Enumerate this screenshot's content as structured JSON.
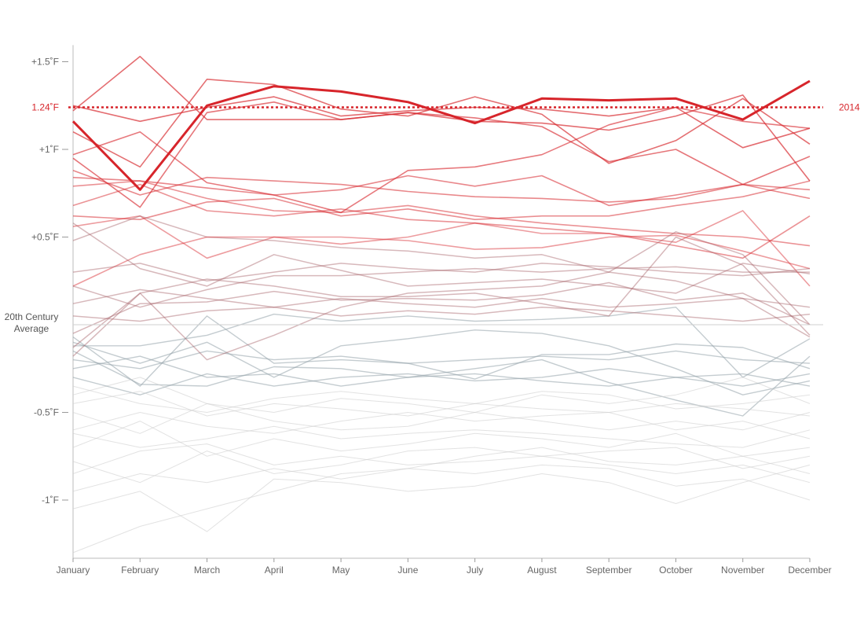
{
  "chart_data": {
    "type": "line",
    "categories": [
      "January",
      "February",
      "March",
      "April",
      "May",
      "June",
      "July",
      "August",
      "September",
      "October",
      "November",
      "December"
    ],
    "ylim": [
      -1.3,
      1.55
    ],
    "y_ticks": [
      {
        "value": 1.5,
        "label": "+1.5˚F"
      },
      {
        "value": 1.0,
        "label": "+1˚F"
      },
      {
        "value": 0.5,
        "label": "+0.5˚F"
      },
      {
        "value": -0.5,
        "label": "-0.5˚F"
      },
      {
        "value": -1.0,
        "label": "-1˚F"
      }
    ],
    "baseline": {
      "value": 0,
      "label_lines": [
        "20th Century",
        "Average"
      ]
    },
    "highlight": {
      "name": "2014",
      "reference_value": 1.24,
      "reference_label": "1.24˚F",
      "color": "#d7252b",
      "values": [
        1.16,
        0.77,
        1.25,
        1.36,
        1.33,
        1.27,
        1.15,
        1.29,
        1.28,
        1.29,
        1.17,
        1.39
      ]
    },
    "colors": {
      "warm": "#d7252b",
      "cool": "#7f949c",
      "neutral": "#cfcfcf"
    },
    "series": [
      {
        "values": [
          1.22,
          1.53,
          1.17,
          1.17,
          1.17,
          1.21,
          1.16,
          1.15,
          1.11,
          1.19,
          1.31,
          0.82
        ]
      },
      {
        "values": [
          1.1,
          0.9,
          1.4,
          1.37,
          1.23,
          1.19,
          1.3,
          1.2,
          0.92,
          1.05,
          1.29,
          1.03
        ]
      },
      {
        "values": [
          1.25,
          1.16,
          1.24,
          1.3,
          1.19,
          1.22,
          1.24,
          1.23,
          1.19,
          1.24,
          1.01,
          1.12
        ]
      },
      {
        "values": [
          0.97,
          1.1,
          0.81,
          0.74,
          0.64,
          0.88,
          0.9,
          0.97,
          1.14,
          1.24,
          1.16,
          1.12
        ]
      },
      {
        "values": [
          0.95,
          0.67,
          1.21,
          1.27,
          1.17,
          1.21,
          1.18,
          1.13,
          0.93,
          1.0,
          0.8,
          0.96
        ]
      },
      {
        "values": [
          0.84,
          0.82,
          0.78,
          0.74,
          0.77,
          0.85,
          0.79,
          0.85,
          0.68,
          0.74,
          0.8,
          0.77
        ]
      },
      {
        "values": [
          0.88,
          0.74,
          0.84,
          0.82,
          0.8,
          0.76,
          0.73,
          0.72,
          0.7,
          0.72,
          0.8,
          0.72
        ]
      },
      {
        "values": [
          0.79,
          0.82,
          0.72,
          0.65,
          0.64,
          0.68,
          0.62,
          0.58,
          0.55,
          0.52,
          0.5,
          0.45
        ]
      },
      {
        "values": [
          0.62,
          0.6,
          0.7,
          0.72,
          0.62,
          0.66,
          0.6,
          0.62,
          0.62,
          0.68,
          0.73,
          0.82
        ]
      },
      {
        "values": [
          0.68,
          0.8,
          0.65,
          0.62,
          0.66,
          0.6,
          0.58,
          0.55,
          0.52,
          0.45,
          0.38,
          0.62
        ]
      },
      {
        "values": [
          0.56,
          0.62,
          0.38,
          0.5,
          0.5,
          0.48,
          0.43,
          0.44,
          0.5,
          0.51,
          0.42,
          0.32
        ]
      },
      {
        "values": [
          0.48,
          0.62,
          0.5,
          0.48,
          0.44,
          0.42,
          0.38,
          0.4,
          0.3,
          0.53,
          0.4,
          0.0
        ]
      },
      {
        "values": [
          0.22,
          0.4,
          0.5,
          0.5,
          0.46,
          0.5,
          0.58,
          0.52,
          0.52,
          0.47,
          0.65,
          0.22
        ]
      },
      {
        "values": [
          0.58,
          0.32,
          0.22,
          0.4,
          0.31,
          0.22,
          0.24,
          0.26,
          0.22,
          0.18,
          0.35,
          0.29
        ]
      },
      {
        "values": [
          0.22,
          0.1,
          0.2,
          0.28,
          0.28,
          0.3,
          0.32,
          0.3,
          0.32,
          0.33,
          0.3,
          0.3
        ]
      },
      {
        "values": [
          -0.13,
          0.18,
          0.26,
          0.22,
          0.16,
          0.16,
          0.18,
          0.12,
          0.05,
          0.5,
          0.34,
          -0.06
        ]
      },
      {
        "values": [
          -0.05,
          0.12,
          0.13,
          0.19,
          0.14,
          0.15,
          0.14,
          0.17,
          0.24,
          0.14,
          0.18,
          0.0
        ]
      },
      {
        "values": [
          -0.18,
          0.18,
          -0.2,
          -0.06,
          0.1,
          0.18,
          0.2,
          0.22,
          0.3,
          0.25,
          0.15,
          -0.07
        ]
      },
      {
        "values": [
          -0.12,
          -0.12,
          -0.06,
          0.06,
          0.02,
          0.05,
          0.02,
          0.03,
          0.05,
          0.1,
          -0.3,
          -0.08
        ]
      },
      {
        "values": [
          -0.07,
          -0.35,
          0.05,
          -0.22,
          -0.2,
          -0.22,
          -0.31,
          -0.17,
          -0.17,
          -0.11,
          -0.13,
          -0.25
        ]
      },
      {
        "values": [
          -0.15,
          -0.34,
          -0.35,
          -0.24,
          -0.25,
          -0.3,
          -0.25,
          -0.2,
          -0.33,
          -0.43,
          -0.52,
          -0.18
        ]
      },
      {
        "values": [
          -0.1,
          -0.22,
          -0.1,
          -0.3,
          -0.12,
          -0.08,
          -0.03,
          -0.05,
          -0.12,
          -0.25,
          -0.4,
          -0.32
        ]
      },
      {
        "values": [
          -0.4,
          -0.3,
          -0.45,
          -0.5,
          -0.42,
          -0.45,
          -0.5,
          -0.4,
          -0.45,
          -0.4,
          -0.3,
          -0.45
        ]
      },
      {
        "values": [
          -0.6,
          -0.5,
          -0.58,
          -0.62,
          -0.55,
          -0.5,
          -0.55,
          -0.52,
          -0.5,
          -0.6,
          -0.55,
          -0.65
        ]
      },
      {
        "values": [
          -0.7,
          -0.55,
          -0.75,
          -0.65,
          -0.72,
          -0.68,
          -0.62,
          -0.65,
          -0.7,
          -0.62,
          -0.75,
          -0.7
        ]
      },
      {
        "values": [
          -0.85,
          -0.72,
          -0.68,
          -0.8,
          -0.75,
          -0.8,
          -0.78,
          -0.75,
          -0.8,
          -0.85,
          -0.8,
          -0.9
        ]
      },
      {
        "values": [
          -0.95,
          -0.85,
          -0.9,
          -0.82,
          -0.88,
          -0.82,
          -0.85,
          -0.8,
          -0.82,
          -0.92,
          -0.88,
          -1.0
        ]
      },
      {
        "values": [
          -1.3,
          -1.15,
          -1.05,
          -0.95,
          -0.85,
          -0.82,
          -0.75,
          -0.7,
          -0.78,
          -0.8,
          -0.75,
          -0.85
        ]
      },
      {
        "values": [
          -1.05,
          -0.95,
          -1.18,
          -0.88,
          -0.9,
          -0.95,
          -0.92,
          -0.85,
          -0.9,
          -1.02,
          -0.9,
          -0.8
        ]
      },
      {
        "values": [
          -0.3,
          -0.4,
          -0.28,
          -0.35,
          -0.3,
          -0.28,
          -0.32,
          -0.3,
          -0.25,
          -0.3,
          -0.35,
          -0.28
        ]
      },
      {
        "values": [
          -0.2,
          -0.25,
          -0.15,
          -0.2,
          -0.18,
          -0.22,
          -0.2,
          -0.18,
          -0.2,
          -0.15,
          -0.2,
          -0.22
        ]
      },
      {
        "values": [
          0.05,
          0.02,
          0.08,
          0.1,
          0.05,
          0.08,
          0.06,
          0.1,
          0.08,
          0.05,
          0.02,
          0.06
        ]
      },
      {
        "values": [
          -0.5,
          -0.62,
          -0.45,
          -0.55,
          -0.6,
          -0.58,
          -0.5,
          -0.55,
          -0.6,
          -0.55,
          -0.6,
          -0.5
        ]
      },
      {
        "values": [
          -0.35,
          -0.45,
          -0.5,
          -0.42,
          -0.38,
          -0.42,
          -0.45,
          -0.38,
          -0.4,
          -0.48,
          -0.45,
          -0.4
        ]
      },
      {
        "values": [
          0.3,
          0.35,
          0.25,
          0.3,
          0.35,
          0.32,
          0.3,
          0.35,
          0.33,
          0.3,
          0.28,
          0.32
        ]
      },
      {
        "values": [
          -0.78,
          -0.9,
          -0.72,
          -0.85,
          -0.8,
          -0.72,
          -0.7,
          -0.75,
          -0.72,
          -0.7,
          -0.82,
          -0.75
        ]
      },
      {
        "values": [
          -0.25,
          -0.18,
          -0.3,
          -0.28,
          -0.35,
          -0.3,
          -0.28,
          -0.32,
          -0.35,
          -0.3,
          -0.28,
          -0.35
        ]
      },
      {
        "values": [
          0.12,
          0.2,
          0.15,
          0.1,
          0.15,
          0.12,
          0.1,
          0.15,
          0.1,
          0.12,
          0.15,
          0.1
        ]
      },
      {
        "values": [
          -0.62,
          -0.7,
          -0.65,
          -0.58,
          -0.65,
          -0.62,
          -0.6,
          -0.62,
          -0.65,
          -0.68,
          -0.7,
          -0.6
        ]
      },
      {
        "values": [
          -0.45,
          -0.38,
          -0.52,
          -0.45,
          -0.48,
          -0.52,
          -0.45,
          -0.48,
          -0.5,
          -0.45,
          -0.48,
          -0.52
        ]
      }
    ]
  }
}
